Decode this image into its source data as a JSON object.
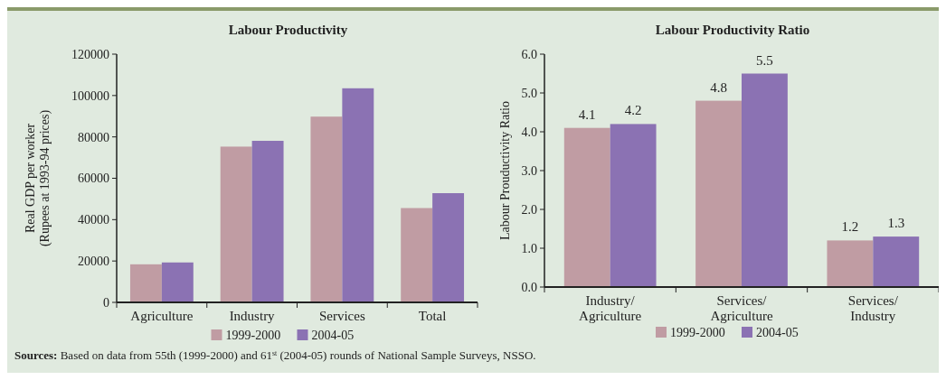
{
  "chart_data": [
    {
      "type": "bar",
      "title": "Labour Productivity",
      "ylabel": "Real GDP per worker\n(Rupees at 1993-94 prices)",
      "categories": [
        "Agriculture",
        "Industry",
        "Services",
        "Total"
      ],
      "series": [
        {
          "name": "1999-2000",
          "color": "#c09ca3",
          "values": [
            18400,
            75300,
            89800,
            45600
          ]
        },
        {
          "name": "2004-05",
          "color": "#8b72b3",
          "values": [
            19300,
            78100,
            103500,
            52800
          ]
        }
      ],
      "ylim": [
        0,
        120000
      ],
      "yticks": [
        0,
        20000,
        40000,
        60000,
        80000,
        100000,
        120000
      ],
      "grid": false,
      "legend": "bottom",
      "annotations": [
        "Sources: Based on data from 55th (1999-2000) and 61$^{st}$ (2004-05) rounds of National Sample Surveys, NSSO."
      ]
    },
    {
      "type": "bar",
      "title": "Labour Productivity Ratio",
      "ylabel": "Labour Prouductivity Ratio",
      "categories": [
        "Industry/ Agriculture",
        "Services/ Agriculture",
        "Services/ Industry"
      ],
      "series": [
        {
          "name": "1999-2000",
          "color": "#c09ca3",
          "values": [
            4.1,
            4.8,
            1.2
          ]
        },
        {
          "name": "2004-05",
          "color": "#8b72b3",
          "values": [
            4.2,
            5.5,
            1.3
          ]
        }
      ],
      "ylim": [
        0,
        6
      ],
      "yticks": [
        {
          "value": 0,
          "label": "0.0"
        },
        {
          "value": 1,
          "label": "1.0"
        },
        {
          "value": 2,
          "label": "2.0"
        },
        {
          "value": 3,
          "label": "3.0"
        },
        {
          "value": 4,
          "label": "4.0"
        },
        {
          "value": 5,
          "label": "5.0"
        },
        {
          "value": 6,
          "label": "6.0"
        }
      ],
      "grid": false,
      "legend": "bottom",
      "data_labels": true
    }
  ]
}
